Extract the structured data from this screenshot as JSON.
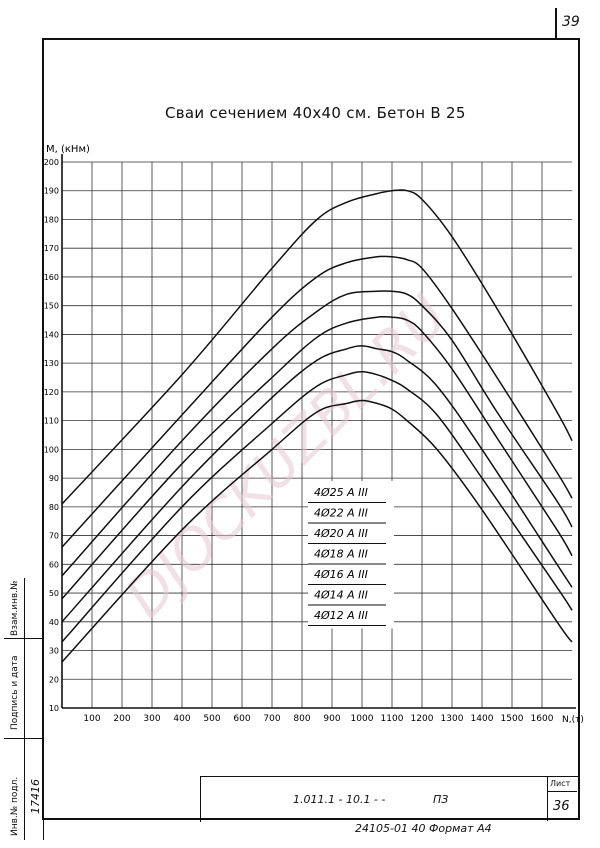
{
  "sheet_top_number": "39",
  "title": "Сваи сечением 40х40 см. Бетон В 25",
  "side_stamp": {
    "inv_orig": "Инв.№ подл.",
    "sign_date": "Подпись и дата",
    "inv_repl": "Взам.инв.№",
    "inv_number": "17416"
  },
  "title_block": {
    "doc_code": "1.011.1 - 10.1 - -",
    "section": "ПЗ",
    "sheet_label": "Лист",
    "sheet_number": "36"
  },
  "bottom_text": "24105-01  40 Формат А4",
  "watermark": "DJOCKUZBL.RU",
  "chart_data": {
    "type": "line",
    "ylabel": "M, (кНм)",
    "xlabel": "N,(т)",
    "xlim": [
      0,
      1700
    ],
    "ylim": [
      10,
      200
    ],
    "x_ticks": [
      100,
      200,
      300,
      400,
      500,
      600,
      700,
      800,
      900,
      1000,
      1100,
      1200,
      1300,
      1400,
      1500,
      1600
    ],
    "y_ticks": [
      10,
      20,
      30,
      40,
      50,
      60,
      70,
      80,
      90,
      100,
      110,
      120,
      130,
      140,
      150,
      160,
      170,
      180,
      190,
      200
    ],
    "legend_placement": "center-right",
    "grid": true,
    "series": [
      {
        "name": "4Ø25 А III",
        "x": [
          0,
          400,
          700,
          850,
          950,
          1050,
          1100,
          1150,
          1200,
          1300,
          1450,
          1650,
          1700
        ],
        "y": [
          81,
          126,
          163,
          180,
          186,
          189,
          190,
          190,
          187,
          174,
          149,
          113,
          103
        ]
      },
      {
        "name": "4Ø22 А III",
        "x": [
          0,
          400,
          700,
          850,
          950,
          1050,
          1100,
          1150,
          1200,
          1300,
          1450,
          1650,
          1700
        ],
        "y": [
          66,
          112,
          146,
          160,
          165,
          167,
          167,
          166,
          163,
          149,
          125,
          92,
          83
        ]
      },
      {
        "name": "4Ø20 А III",
        "x": [
          0,
          400,
          700,
          850,
          950,
          1050,
          1100,
          1150,
          1200,
          1300,
          1450,
          1650,
          1700
        ],
        "y": [
          56,
          103,
          135,
          148,
          154,
          155,
          155,
          154,
          150,
          138,
          113,
          82,
          73
        ]
      },
      {
        "name": "4Ø18 А III",
        "x": [
          0,
          400,
          700,
          850,
          950,
          1050,
          1100,
          1150,
          1200,
          1300,
          1450,
          1650,
          1700
        ],
        "y": [
          48,
          95,
          125,
          139,
          144,
          146,
          146,
          145,
          141,
          128,
          104,
          72,
          63
        ]
      },
      {
        "name": "4Ø16 А III",
        "x": [
          0,
          400,
          700,
          850,
          950,
          1000,
          1050,
          1100,
          1150,
          1250,
          1400,
          1650,
          1700
        ],
        "y": [
          40,
          87,
          118,
          131,
          135,
          136,
          135,
          134,
          131,
          122,
          100,
          60,
          52
        ]
      },
      {
        "name": "4Ø14 А III",
        "x": [
          0,
          400,
          700,
          850,
          950,
          1000,
          1050,
          1100,
          1150,
          1250,
          1400,
          1650,
          1700
        ],
        "y": [
          33,
          80,
          109,
          122,
          126,
          127,
          126,
          124,
          121,
          112,
          90,
          52,
          44
        ]
      },
      {
        "name": "4Ø12 А III",
        "x": [
          0,
          400,
          700,
          850,
          950,
          1000,
          1050,
          1100,
          1150,
          1250,
          1400,
          1650,
          1700
        ],
        "y": [
          26,
          72,
          100,
          113,
          116,
          117,
          116,
          114,
          110,
          100,
          79,
          40,
          33
        ]
      }
    ]
  }
}
